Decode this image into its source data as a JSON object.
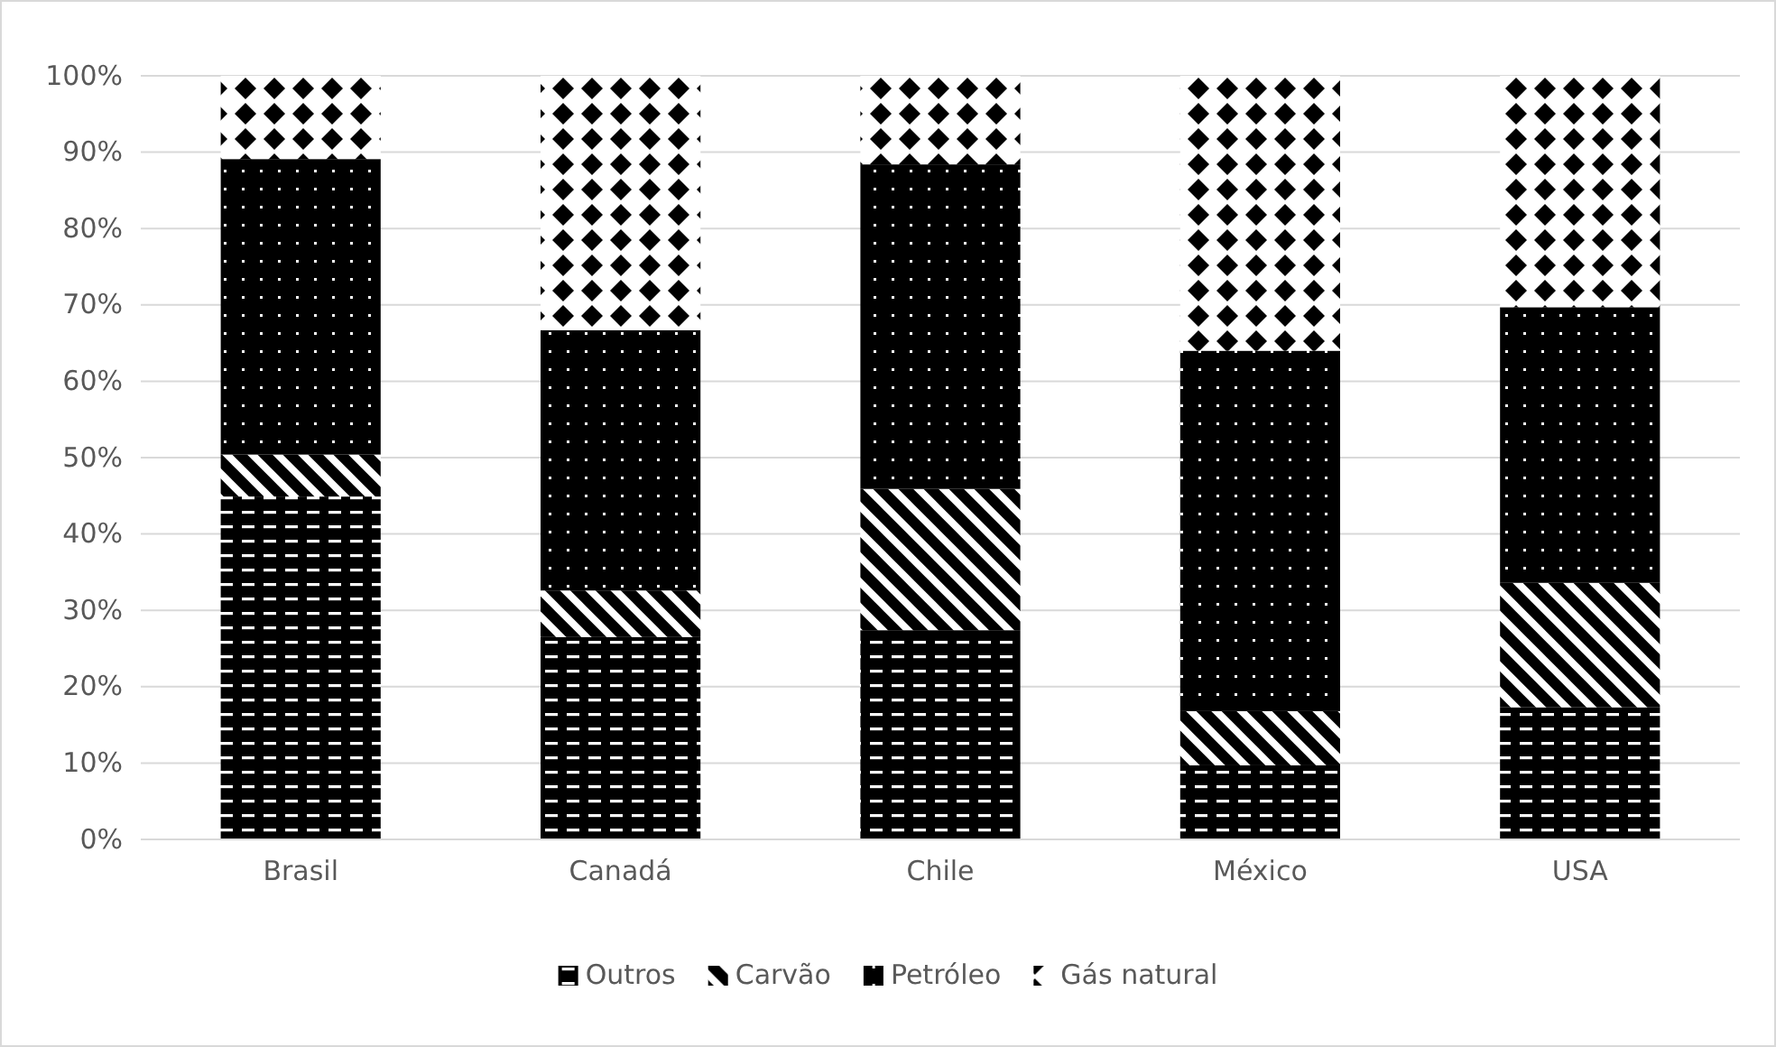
{
  "chart_data": {
    "type": "bar",
    "stacked": true,
    "categories": [
      "Brasil",
      "Canadá",
      "Chile",
      "México",
      "USA"
    ],
    "series": [
      {
        "name": "Outros",
        "color": "#000000",
        "values": [
          44.9,
          26.5,
          27.4,
          9.7,
          17.3
        ]
      },
      {
        "name": "Carvão",
        "color": "#000000",
        "values": [
          5.5,
          6.1,
          18.5,
          7.1,
          16.3
        ]
      },
      {
        "name": "Petróleo",
        "color": "#000000",
        "values": [
          38.7,
          34.1,
          42.5,
          47.2,
          36.1
        ]
      },
      {
        "name": "Gás natural",
        "color": "#000000",
        "values": [
          10.9,
          33.3,
          11.6,
          36.0,
          30.3
        ]
      }
    ],
    "ylim": [
      0,
      100
    ],
    "yticks": [
      {
        "value": 0,
        "label": "0%"
      },
      {
        "value": 10,
        "label": "10%"
      },
      {
        "value": 20,
        "label": "20%"
      },
      {
        "value": 30,
        "label": "30%"
      },
      {
        "value": 40,
        "label": "40%"
      },
      {
        "value": 50,
        "label": "50%"
      },
      {
        "value": 60,
        "label": "60%"
      },
      {
        "value": 70,
        "label": "70%"
      },
      {
        "value": 80,
        "label": "80%"
      },
      {
        "value": 90,
        "label": "90%"
      },
      {
        "value": 100,
        "label": "100%"
      }
    ],
    "grid": "y",
    "legend": "bottom"
  }
}
